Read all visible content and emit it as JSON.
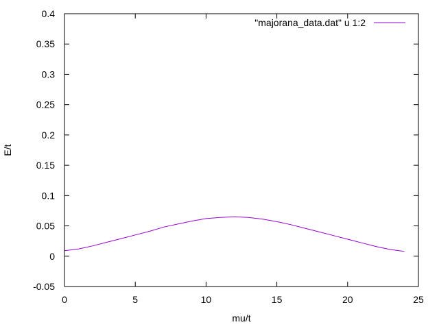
{
  "chart_data": {
    "type": "line",
    "title": "",
    "xlabel": "mu/t",
    "ylabel": "E/t",
    "xlim": [
      0,
      25
    ],
    "ylim": [
      -0.05,
      0.4
    ],
    "xticks": [
      0,
      5,
      10,
      15,
      20,
      25
    ],
    "xtick_labels": [
      "0",
      "5",
      "10",
      "15",
      "20",
      "25"
    ],
    "yticks": [
      -0.05,
      0,
      0.05,
      0.1,
      0.15,
      0.2,
      0.25,
      0.3,
      0.35,
      0.4
    ],
    "ytick_labels": [
      "-0.05",
      "0",
      "0.05",
      "0.1",
      "0.15",
      "0.2",
      "0.25",
      "0.3",
      "0.35",
      "0.4"
    ],
    "grid": false,
    "legend_position": "top-right",
    "series": [
      {
        "name": "\"majorana_data.dat\" u 1:2",
        "color": "#9400d3",
        "x": [
          0,
          1,
          2,
          3,
          4,
          5,
          6,
          7,
          8,
          9,
          10,
          11,
          12,
          13,
          14,
          15,
          16,
          17,
          18,
          19,
          20,
          21,
          22,
          23,
          24
        ],
        "y": [
          0.009,
          0.012,
          0.017,
          0.023,
          0.029,
          0.035,
          0.041,
          0.048,
          0.053,
          0.058,
          0.062,
          0.064,
          0.065,
          0.064,
          0.061,
          0.057,
          0.052,
          0.046,
          0.04,
          0.034,
          0.028,
          0.022,
          0.016,
          0.011,
          0.008
        ]
      }
    ]
  }
}
